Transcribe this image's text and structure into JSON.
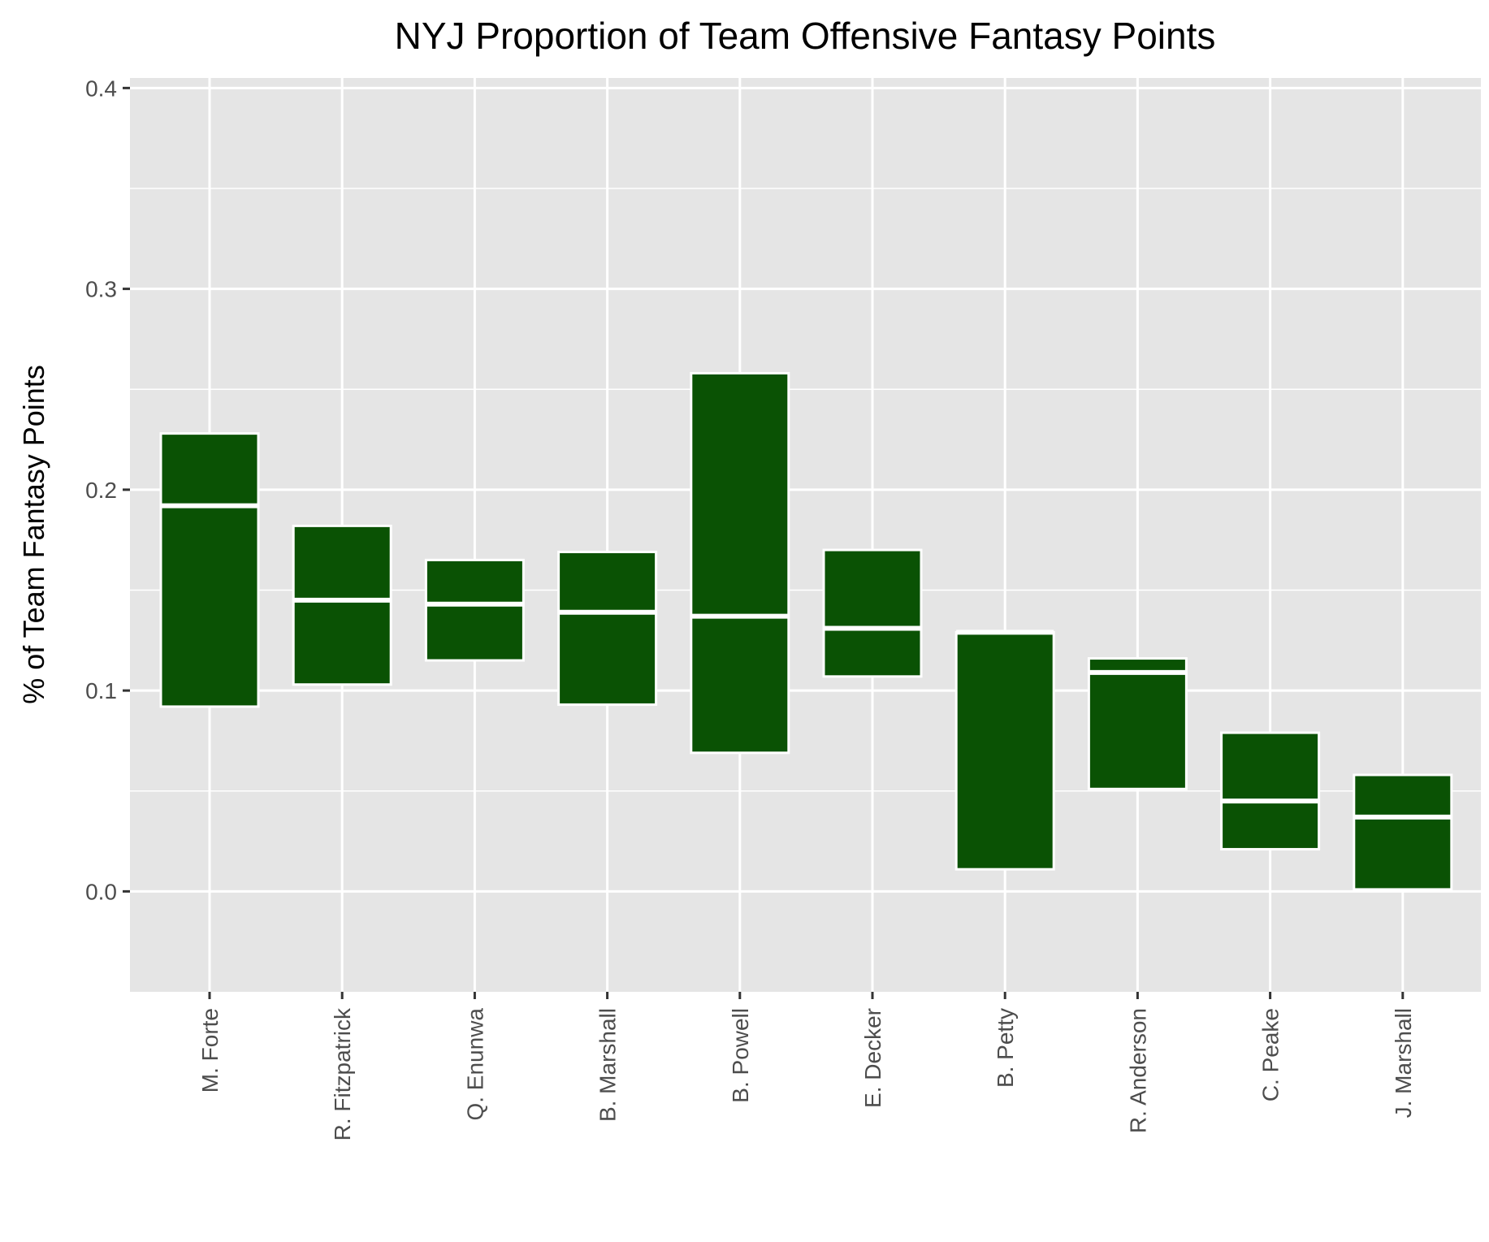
{
  "chart_data": {
    "type": "crossbar",
    "title": "NYJ Proportion of Team Offensive Fantasy Points",
    "xlabel": "",
    "ylabel": "% of Team Fantasy Points",
    "ylim": [
      -0.05,
      0.405
    ],
    "yticks": [
      "0.0",
      "0.1",
      "0.2",
      "0.3",
      "0.4"
    ],
    "ytick_values": [
      0.0,
      0.1,
      0.2,
      0.3,
      0.4
    ],
    "grid": true,
    "legend": "none",
    "categories": [
      "M. Forte",
      "R. Fitzpatrick",
      "Q. Enunwa",
      "B. Marshall",
      "B. Powell",
      "E. Decker",
      "B. Petty",
      "R. Anderson",
      "C. Peake",
      "J. Marshall"
    ],
    "series": [
      {
        "low": [
          0.092,
          0.103,
          0.115,
          0.093,
          0.069,
          0.107,
          0.011,
          0.051,
          0.021,
          0.001
        ],
        "middle": [
          0.192,
          0.145,
          0.143,
          0.139,
          0.137,
          0.131,
          0.129,
          0.109,
          0.045,
          0.037
        ],
        "high": [
          0.228,
          0.182,
          0.165,
          0.169,
          0.258,
          0.17,
          0.129,
          0.116,
          0.079,
          0.058
        ]
      }
    ],
    "colors": {
      "fill": "#0a5204",
      "outline": "#ffffff",
      "panel": "#e5e5e5",
      "grid": "#ffffff"
    }
  }
}
